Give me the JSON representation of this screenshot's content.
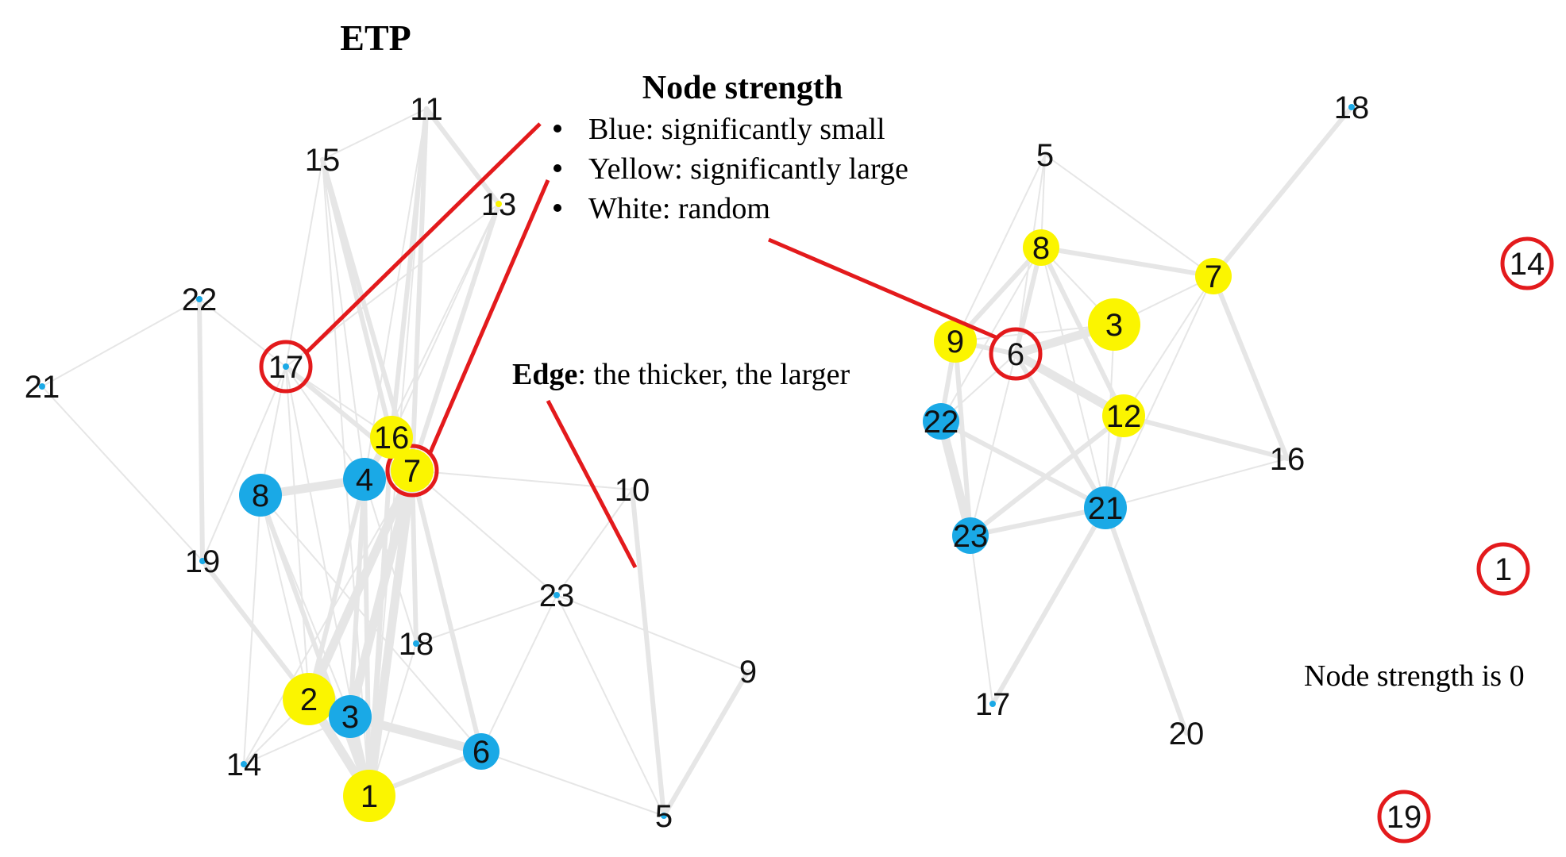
{
  "title": "ETP",
  "legend": {
    "title": "Node strength",
    "items": [
      {
        "label": "Blue: significantly small",
        "color": "#1aa9e6"
      },
      {
        "label": "Yellow: significantly large",
        "color": "#fbf500"
      },
      {
        "label": "White: random",
        "color": "#ffffff"
      }
    ]
  },
  "edge_note": {
    "bold": "Edge",
    "rest": ": the thicker, the larger"
  },
  "zero_note": "Node strength is 0",
  "colors": {
    "blue": "#1aa9e6",
    "yellow": "#fbf500",
    "edge": "#e6e6e6",
    "highlight": "#e31a1c"
  },
  "network_left": {
    "nodes": [
      {
        "id": "1",
        "type": "yellow",
        "strength": "large"
      },
      {
        "id": "2",
        "type": "yellow",
        "strength": "large"
      },
      {
        "id": "3",
        "type": "blue",
        "strength": "medium"
      },
      {
        "id": "4",
        "type": "blue",
        "strength": "medium"
      },
      {
        "id": "5",
        "type": "blue",
        "strength": "tiny"
      },
      {
        "id": "6",
        "type": "blue",
        "strength": "small"
      },
      {
        "id": "7",
        "type": "yellow",
        "strength": "medium",
        "highlighted": true
      },
      {
        "id": "8",
        "type": "blue",
        "strength": "medium"
      },
      {
        "id": "9",
        "type": "white",
        "strength": "none"
      },
      {
        "id": "10",
        "type": "white",
        "strength": "none"
      },
      {
        "id": "11",
        "type": "white",
        "strength": "none"
      },
      {
        "id": "13",
        "type": "yellow",
        "strength": "tiny"
      },
      {
        "id": "14",
        "type": "blue",
        "strength": "tiny"
      },
      {
        "id": "15",
        "type": "white",
        "strength": "none"
      },
      {
        "id": "16",
        "type": "yellow",
        "strength": "medium"
      },
      {
        "id": "17",
        "type": "blue",
        "strength": "tiny",
        "highlighted": true
      },
      {
        "id": "18",
        "type": "blue",
        "strength": "tiny"
      },
      {
        "id": "19",
        "type": "blue",
        "strength": "tiny"
      },
      {
        "id": "21",
        "type": "blue",
        "strength": "tiny"
      },
      {
        "id": "22",
        "type": "blue",
        "strength": "tiny"
      },
      {
        "id": "23",
        "type": "blue",
        "strength": "tiny"
      }
    ],
    "edges": [
      [
        "1",
        "7",
        3
      ],
      [
        "1",
        "3",
        3
      ],
      [
        "1",
        "2",
        3
      ],
      [
        "1",
        "4",
        2
      ],
      [
        "1",
        "16",
        2
      ],
      [
        "1",
        "8",
        2
      ],
      [
        "1",
        "18",
        1
      ],
      [
        "1",
        "6",
        2
      ],
      [
        "1",
        "17",
        1
      ],
      [
        "2",
        "3",
        2
      ],
      [
        "2",
        "7",
        3
      ],
      [
        "2",
        "4",
        2
      ],
      [
        "2",
        "8",
        1
      ],
      [
        "2",
        "19",
        2
      ],
      [
        "2",
        "17",
        1
      ],
      [
        "2",
        "14",
        1
      ],
      [
        "3",
        "7",
        3
      ],
      [
        "3",
        "6",
        3
      ],
      [
        "3",
        "4",
        2
      ],
      [
        "3",
        "8",
        1
      ],
      [
        "3",
        "14",
        1
      ],
      [
        "4",
        "7",
        3
      ],
      [
        "4",
        "8",
        3
      ],
      [
        "4",
        "16",
        2
      ],
      [
        "4",
        "17",
        1
      ],
      [
        "4",
        "11",
        1
      ],
      [
        "4",
        "13",
        1
      ],
      [
        "4",
        "15",
        1
      ],
      [
        "4",
        "18",
        1
      ],
      [
        "7",
        "16",
        2
      ],
      [
        "7",
        "8",
        2
      ],
      [
        "7",
        "11",
        2
      ],
      [
        "7",
        "15",
        2
      ],
      [
        "7",
        "13",
        2
      ],
      [
        "7",
        "17",
        2
      ],
      [
        "7",
        "18",
        2
      ],
      [
        "7",
        "6",
        2
      ],
      [
        "7",
        "10",
        1
      ],
      [
        "7",
        "23",
        1
      ],
      [
        "7",
        "14",
        1
      ],
      [
        "16",
        "11",
        2
      ],
      [
        "16",
        "15",
        2
      ],
      [
        "16",
        "17",
        1
      ],
      [
        "16",
        "13",
        1
      ],
      [
        "8",
        "17",
        1
      ],
      [
        "8",
        "14",
        1
      ],
      [
        "8",
        "6",
        1
      ],
      [
        "17",
        "22",
        1
      ],
      [
        "17",
        "19",
        1
      ],
      [
        "17",
        "15",
        1
      ],
      [
        "17",
        "13",
        1
      ],
      [
        "19",
        "22",
        2
      ],
      [
        "22",
        "21",
        1
      ],
      [
        "21",
        "19",
        1
      ],
      [
        "15",
        "11",
        1
      ],
      [
        "11",
        "13",
        2
      ],
      [
        "1",
        "15",
        1
      ],
      [
        "1",
        "11",
        1
      ],
      [
        "23",
        "5",
        1
      ],
      [
        "23",
        "9",
        1
      ],
      [
        "23",
        "10",
        1
      ],
      [
        "23",
        "18",
        1
      ],
      [
        "10",
        "5",
        2
      ],
      [
        "5",
        "9",
        2
      ],
      [
        "6",
        "5",
        1
      ],
      [
        "6",
        "23",
        1
      ]
    ]
  },
  "network_right": {
    "nodes": [
      {
        "id": "3",
        "type": "yellow",
        "strength": "large"
      },
      {
        "id": "5",
        "type": "white",
        "strength": "none"
      },
      {
        "id": "6",
        "type": "white",
        "strength": "none",
        "highlighted": true
      },
      {
        "id": "7",
        "type": "yellow",
        "strength": "small"
      },
      {
        "id": "8",
        "type": "yellow",
        "strength": "small"
      },
      {
        "id": "9",
        "type": "yellow",
        "strength": "medium"
      },
      {
        "id": "12",
        "type": "yellow",
        "strength": "medium"
      },
      {
        "id": "16",
        "type": "white",
        "strength": "none"
      },
      {
        "id": "17",
        "type": "blue",
        "strength": "tiny"
      },
      {
        "id": "18",
        "type": "blue",
        "strength": "tiny"
      },
      {
        "id": "20",
        "type": "white",
        "strength": "none"
      },
      {
        "id": "21",
        "type": "blue",
        "strength": "medium"
      },
      {
        "id": "22",
        "type": "blue",
        "strength": "small"
      },
      {
        "id": "23",
        "type": "blue",
        "strength": "small"
      }
    ],
    "edges": [
      [
        "8",
        "7",
        2
      ],
      [
        "8",
        "6",
        2
      ],
      [
        "8",
        "9",
        2
      ],
      [
        "8",
        "22",
        1
      ],
      [
        "8",
        "12",
        2
      ],
      [
        "8",
        "5",
        1
      ],
      [
        "8",
        "21",
        1
      ],
      [
        "8",
        "3",
        1
      ],
      [
        "6",
        "3",
        3
      ],
      [
        "6",
        "9",
        2
      ],
      [
        "6",
        "12",
        3
      ],
      [
        "6",
        "21",
        2
      ],
      [
        "6",
        "22",
        1
      ],
      [
        "6",
        "23",
        1
      ],
      [
        "9",
        "22",
        2
      ],
      [
        "9",
        "23",
        2
      ],
      [
        "9",
        "3",
        1
      ],
      [
        "22",
        "23",
        3
      ],
      [
        "22",
        "21",
        2
      ],
      [
        "23",
        "21",
        2
      ],
      [
        "23",
        "12",
        2
      ],
      [
        "23",
        "17",
        1
      ],
      [
        "21",
        "12",
        2
      ],
      [
        "21",
        "20",
        2
      ],
      [
        "21",
        "17",
        2
      ],
      [
        "21",
        "16",
        1
      ],
      [
        "21",
        "3",
        1
      ],
      [
        "12",
        "16",
        2
      ],
      [
        "12",
        "7",
        1
      ],
      [
        "3",
        "7",
        1
      ],
      [
        "7",
        "18",
        2
      ],
      [
        "7",
        "16",
        2
      ],
      [
        "5",
        "9",
        1
      ],
      [
        "5",
        "7",
        1
      ],
      [
        "5",
        "6",
        1
      ],
      [
        "21",
        "7",
        1
      ]
    ]
  },
  "isolated_nodes": [
    {
      "id": "14",
      "strength": 0
    },
    {
      "id": "1",
      "strength": 0
    },
    {
      "id": "19",
      "strength": 0
    }
  ]
}
